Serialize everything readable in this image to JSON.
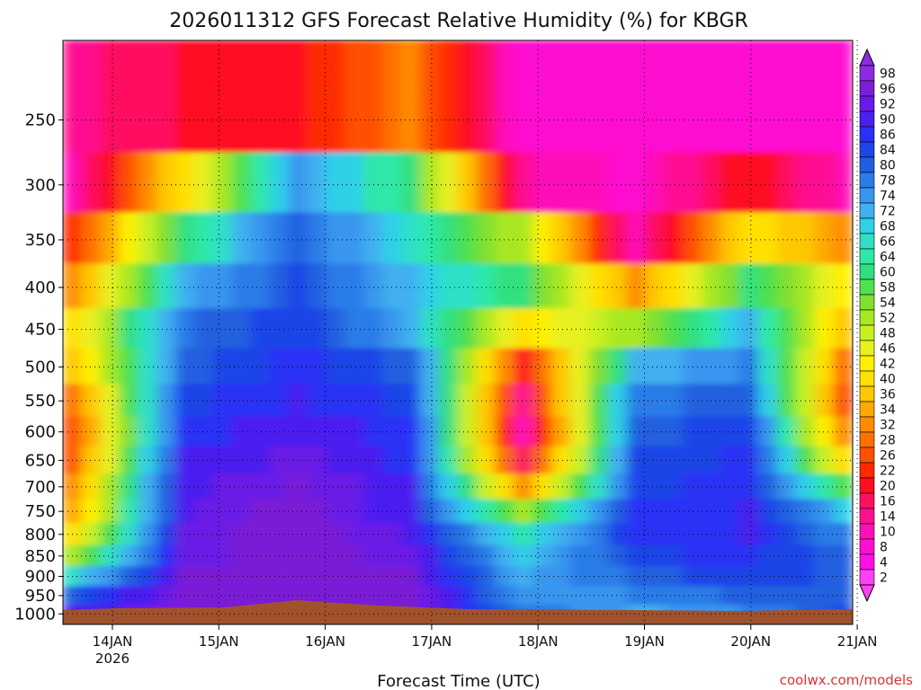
{
  "chart_data": {
    "type": "heatmap",
    "title": "2026011312 GFS Forecast Relative Humidity (%) for KBGR",
    "xlabel": "Forecast Time (UTC)",
    "ylabel": "",
    "credit": "coolwx.com/models",
    "y_scale": "log",
    "y_reversed": true,
    "y_levels_hpa": [
      250,
      300,
      350,
      400,
      450,
      500,
      550,
      600,
      650,
      700,
      750,
      800,
      850,
      900,
      950,
      1000
    ],
    "y_tick_labels": [
      "250",
      "300",
      "350",
      "400",
      "450",
      "500",
      "550",
      "600",
      "650",
      "700",
      "750",
      "800",
      "850",
      "900",
      "950",
      "1000"
    ],
    "y_range_hpa": [
      200,
      1030
    ],
    "x_tick_labels": [
      "14JAN",
      "15JAN",
      "16JAN",
      "17JAN",
      "18JAN",
      "19JAN",
      "20JAN",
      "21JAN"
    ],
    "x_year_label": "2026",
    "x_range_days": [
      "13JAN 12Z",
      "21JAN 00Z"
    ],
    "grid": true,
    "colorbar_labels": [
      "98",
      "96",
      "92",
      "90",
      "86",
      "84",
      "80",
      "78",
      "74",
      "72",
      "68",
      "66",
      "64",
      "60",
      "58",
      "54",
      "52",
      "48",
      "46",
      "42",
      "40",
      "36",
      "34",
      "32",
      "28",
      "26",
      "22",
      "20",
      "16",
      "14",
      "10",
      "8",
      "4",
      "2"
    ],
    "colorbar_colors": [
      "#8a2be2",
      "#7a1fd6",
      "#6a1ae6",
      "#4b1ff0",
      "#2a30f5",
      "#1f45e8",
      "#2060e0",
      "#2a7ce8",
      "#3796ee",
      "#3fb0f0",
      "#2fd0e8",
      "#2fe0c8",
      "#2fe8a8",
      "#30e080",
      "#50e050",
      "#80e030",
      "#a8e820",
      "#c8f020",
      "#e8f020",
      "#fff000",
      "#ffe000",
      "#ffc800",
      "#ffa800",
      "#ff8c00",
      "#ff7000",
      "#ff5000",
      "#ff2a00",
      "#ff1020",
      "#ff1060",
      "#ff1090",
      "#ff10b8",
      "#ff10d0",
      "#ff10e8",
      "#ff40f8"
    ],
    "column_humidity_pct": [
      [
        14,
        10,
        22,
        30,
        40,
        36,
        28,
        24,
        26,
        30,
        34,
        40,
        52,
        66,
        80,
        88
      ],
      [
        18,
        40,
        60,
        72,
        78,
        80,
        84,
        86,
        88,
        90,
        90,
        92,
        92,
        94,
        96,
        96
      ],
      [
        20,
        74,
        80,
        82,
        84,
        86,
        88,
        90,
        92,
        94,
        96,
        96,
        96,
        96,
        96,
        96
      ],
      [
        30,
        60,
        66,
        70,
        72,
        80,
        84,
        86,
        86,
        88,
        88,
        90,
        92,
        94,
        96,
        96
      ],
      [
        8,
        12,
        50,
        60,
        40,
        20,
        14,
        10,
        16,
        30,
        50,
        64,
        68,
        72,
        74,
        78
      ],
      [
        6,
        8,
        10,
        30,
        52,
        70,
        78,
        80,
        82,
        84,
        86,
        86,
        84,
        80,
        76,
        72
      ],
      [
        8,
        20,
        40,
        60,
        70,
        76,
        80,
        84,
        86,
        86,
        88,
        88,
        86,
        84,
        80,
        76
      ],
      [
        6,
        8,
        30,
        40,
        30,
        20,
        16,
        20,
        30,
        50,
        66,
        74,
        78,
        80,
        82,
        84
      ]
    ]
  }
}
